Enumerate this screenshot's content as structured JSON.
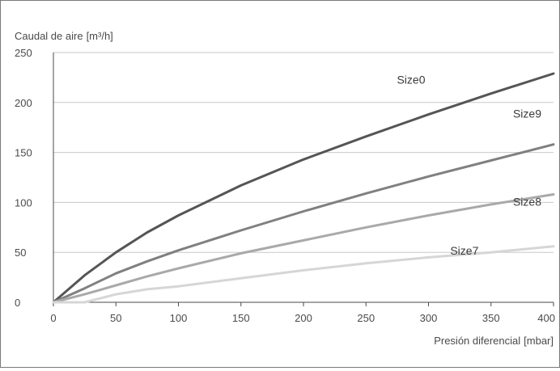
{
  "chart_data": {
    "type": "line",
    "ylabel": "Caudal de aire",
    "ylabel_unit": "[m³/h]",
    "xlabel": "Presión diferencial",
    "xlabel_unit": "[mbar]",
    "xlim": [
      0,
      400
    ],
    "ylim": [
      0,
      250
    ],
    "xticks": [
      0,
      50,
      100,
      150,
      200,
      250,
      300,
      350,
      400
    ],
    "yticks": [
      0,
      50,
      100,
      150,
      200,
      250
    ],
    "grid": "horizontal",
    "series": [
      {
        "name": "Size0",
        "color": "#555555",
        "x": [
          0,
          25,
          50,
          75,
          100,
          150,
          200,
          250,
          300,
          350,
          400
        ],
        "y": [
          0,
          27,
          50,
          70,
          87,
          117,
          143,
          166,
          188,
          209,
          229
        ]
      },
      {
        "name": "Size9",
        "color": "#808080",
        "x": [
          0,
          25,
          50,
          75,
          100,
          150,
          200,
          250,
          300,
          350,
          400
        ],
        "y": [
          0,
          14,
          29,
          41,
          52,
          72,
          91,
          109,
          126,
          142,
          158
        ]
      },
      {
        "name": "Size8",
        "color": "#a9a9a9",
        "x": [
          0,
          25,
          50,
          75,
          100,
          150,
          200,
          250,
          300,
          350,
          400
        ],
        "y": [
          0,
          8,
          17,
          26,
          34,
          49,
          62,
          75,
          87,
          98,
          108
        ]
      },
      {
        "name": "Size7",
        "color": "#d6d6d6",
        "x": [
          0,
          25,
          50,
          75,
          100,
          150,
          200,
          250,
          300,
          350,
          400
        ],
        "y": [
          0,
          0,
          8,
          13,
          16,
          24,
          32,
          39,
          45,
          50,
          56
        ]
      }
    ]
  }
}
